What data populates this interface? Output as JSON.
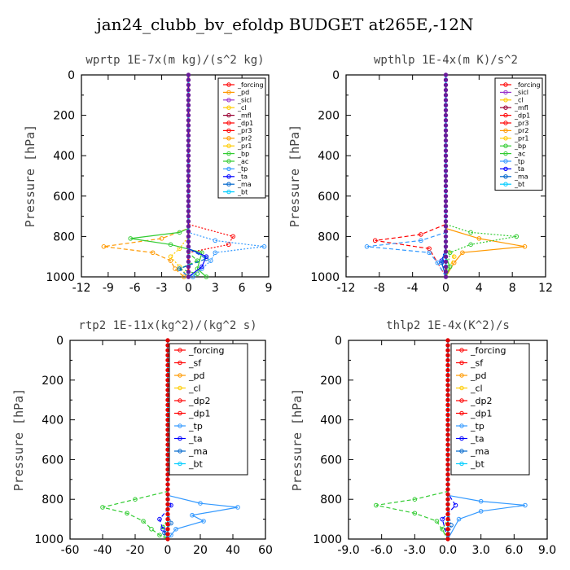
{
  "title": "jan24_clubb_bv_efoldp  BUDGET at265E,-12N",
  "colors": {
    "forcing": "#ff0000",
    "sf": "#ff0000",
    "pd": "#ff9900",
    "sicl": "#9933cc",
    "cl": "#ffcc00",
    "mfl": "#990033",
    "dp1": "#ff0000",
    "pr3": "#ff0000",
    "pr2": "#ff9900",
    "pr1": "#ffcc00",
    "bp": "#33cc33",
    "ac": "#33cc33",
    "tp": "#3399ff",
    "ta": "#0000ff",
    "ma": "#0066cc",
    "bt": "#00ccff"
  },
  "chart_data": [
    {
      "type": "line",
      "title": "wprtp   1E-7x(m kg)/(s^2 kg)",
      "ylabel": "Pressure [hPa]",
      "xlim": [
        -12,
        9
      ],
      "ylim": [
        1000,
        0
      ],
      "xticks": [
        "-12",
        "-9",
        "-6",
        "-3",
        "0",
        "3",
        "6",
        "9"
      ],
      "yticks": [
        "0",
        "200",
        "400",
        "600",
        "800",
        "1000"
      ],
      "legend": [
        "_forcing",
        "_pd",
        "_sicl",
        "_cl",
        "_mfl",
        "_dp1",
        "_pr3",
        "_pr2",
        "_pr1",
        "_bp",
        "_ac",
        "_tp",
        "_ta",
        "_ma",
        "_bt"
      ],
      "series": [
        {
          "name": "_forcing",
          "ckey": "forcing",
          "x": [
            0,
            0
          ],
          "y": [
            0,
            1000
          ]
        },
        {
          "name": "_pd",
          "ckey": "pd",
          "x": [
            0,
            0
          ],
          "y": [
            0,
            1000
          ]
        },
        {
          "name": "_sicl",
          "ckey": "sicl",
          "x": [
            0,
            0
          ],
          "y": [
            0,
            1000
          ]
        },
        {
          "name": "_cl",
          "ckey": "cl",
          "x": [
            0,
            0
          ],
          "y": [
            0,
            1000
          ]
        },
        {
          "name": "_mfl",
          "ckey": "mfl",
          "x": [
            0,
            0
          ],
          "y": [
            0,
            1000
          ]
        },
        {
          "name": "_dp1",
          "ckey": "dp1",
          "x": [
            0,
            0,
            5,
            4.5,
            0,
            0,
            0
          ],
          "y": [
            0,
            740,
            800,
            840,
            880,
            920,
            1000
          ]
        },
        {
          "name": "_pr3",
          "ckey": "pr3",
          "x": [
            0,
            0,
            0,
            0,
            0
          ],
          "y": [
            0,
            740,
            800,
            880,
            1000
          ]
        },
        {
          "name": "_pr2",
          "ckey": "pr2",
          "x": [
            0,
            0,
            -3,
            -9.5,
            -4,
            -2,
            -1.5,
            -0.5
          ],
          "y": [
            0,
            760,
            810,
            850,
            880,
            920,
            960,
            1000
          ]
        },
        {
          "name": "_pr1",
          "ckey": "pr1",
          "x": [
            0,
            0,
            -1,
            -2,
            -1,
            0
          ],
          "y": [
            0,
            800,
            860,
            900,
            950,
            1000
          ]
        },
        {
          "name": "_bp",
          "ckey": "bp",
          "x": [
            0,
            0,
            -1,
            -6.5,
            -2,
            1.5,
            1,
            2
          ],
          "y": [
            0,
            760,
            780,
            810,
            840,
            880,
            960,
            1000
          ]
        },
        {
          "name": "_ac",
          "ckey": "ac",
          "x": [
            0,
            0,
            1,
            -1,
            1,
            0
          ],
          "y": [
            0,
            880,
            920,
            960,
            985,
            1000
          ]
        },
        {
          "name": "_tp",
          "ckey": "tp",
          "x": [
            0,
            0,
            3,
            8.5,
            3,
            2.5,
            1.5,
            0.5
          ],
          "y": [
            0,
            780,
            820,
            850,
            880,
            920,
            960,
            1000
          ]
        },
        {
          "name": "_ta",
          "ckey": "ta",
          "x": [
            0,
            0,
            2,
            1.5,
            0
          ],
          "y": [
            0,
            860,
            900,
            950,
            1000
          ]
        },
        {
          "name": "_ma",
          "ckey": "ma",
          "x": [
            0,
            0,
            2,
            -1,
            0
          ],
          "y": [
            0,
            860,
            910,
            960,
            1000
          ]
        },
        {
          "name": "_bt",
          "ckey": "bt",
          "x": [
            0,
            0
          ],
          "y": [
            0,
            1000
          ]
        }
      ]
    },
    {
      "type": "line",
      "title": "wpthlp   1E-4x(m K)/s^2",
      "ylabel": "Pressure [hPa]",
      "xlim": [
        -12,
        12
      ],
      "ylim": [
        1000,
        0
      ],
      "xticks": [
        "-12",
        "-8",
        "-4",
        "0",
        "4",
        "8",
        "12"
      ],
      "yticks": [
        "0",
        "200",
        "400",
        "600",
        "800",
        "1000"
      ],
      "legend": [
        "_forcing",
        "_sicl",
        "_cl",
        "_mfl",
        "_dp1",
        "_pr3",
        "_pr2",
        "_pr1",
        "_bp",
        "_ac",
        "_tp",
        "_ta",
        "_ma",
        "_bt"
      ],
      "series": [
        {
          "name": "_forcing",
          "ckey": "forcing",
          "x": [
            0,
            0
          ],
          "y": [
            0,
            1000
          ]
        },
        {
          "name": "_sicl",
          "ckey": "sicl",
          "x": [
            0,
            0
          ],
          "y": [
            0,
            1000
          ]
        },
        {
          "name": "_cl",
          "ckey": "cl",
          "x": [
            0,
            0
          ],
          "y": [
            0,
            1000
          ]
        },
        {
          "name": "_mfl",
          "ckey": "mfl",
          "x": [
            0,
            0
          ],
          "y": [
            0,
            1000
          ]
        },
        {
          "name": "_dp1",
          "ckey": "dp1",
          "x": [
            0,
            0,
            -3,
            -8.5,
            -2,
            0
          ],
          "y": [
            0,
            740,
            790,
            820,
            860,
            1000
          ]
        },
        {
          "name": "_pr3",
          "ckey": "pr3",
          "x": [
            0,
            0
          ],
          "y": [
            0,
            1000
          ]
        },
        {
          "name": "_pr2",
          "ckey": "pr2",
          "x": [
            0,
            0,
            4,
            9.5,
            2,
            1,
            0
          ],
          "y": [
            0,
            760,
            810,
            850,
            880,
            930,
            1000
          ]
        },
        {
          "name": "_pr1",
          "ckey": "pr1",
          "x": [
            0,
            0,
            1,
            0
          ],
          "y": [
            0,
            850,
            900,
            1000
          ]
        },
        {
          "name": "_bp",
          "ckey": "bp",
          "x": [
            0,
            0,
            3,
            8.5,
            3,
            0.5,
            0
          ],
          "y": [
            0,
            740,
            780,
            800,
            840,
            880,
            1000
          ]
        },
        {
          "name": "_ac",
          "ckey": "ac",
          "x": [
            0,
            0,
            0.5,
            0
          ],
          "y": [
            0,
            900,
            950,
            1000
          ]
        },
        {
          "name": "_tp",
          "ckey": "tp",
          "x": [
            0,
            0,
            -3,
            -9.5,
            -2,
            -1,
            0
          ],
          "y": [
            0,
            780,
            820,
            850,
            880,
            930,
            1000
          ]
        },
        {
          "name": "_ta",
          "ckey": "ta",
          "x": [
            0,
            0,
            -0.5,
            0
          ],
          "y": [
            0,
            850,
            920,
            1000
          ]
        },
        {
          "name": "_ma",
          "ckey": "ma",
          "x": [
            0,
            0,
            -0.5,
            0
          ],
          "y": [
            0,
            860,
            930,
            1000
          ]
        },
        {
          "name": "_bt",
          "ckey": "bt",
          "x": [
            0,
            0
          ],
          "y": [
            0,
            1000
          ]
        }
      ]
    },
    {
      "type": "line",
      "title": "rtp2   1E-11x(kg^2)/(kg^2 s)",
      "ylabel": "Pressure [hPa]",
      "xlim": [
        -60,
        60
      ],
      "ylim": [
        1000,
        0
      ],
      "xticks": [
        "-60",
        "-40",
        "-20",
        "0",
        "20",
        "40",
        "60"
      ],
      "yticks": [
        "0",
        "200",
        "400",
        "600",
        "800",
        "1000"
      ],
      "legend": [
        "_forcing",
        "_sf",
        "_pd",
        "_cl",
        "_dp2",
        "_dp1",
        "_tp",
        "_ta",
        "_ma",
        "_bt"
      ],
      "series": [
        {
          "name": "_forcing",
          "ckey": "forcing",
          "x": [
            0,
            0
          ],
          "y": [
            0,
            1000
          ]
        },
        {
          "name": "_sf",
          "ckey": "sf",
          "x": [
            0,
            0
          ],
          "y": [
            0,
            1000
          ]
        },
        {
          "name": "_pd",
          "ckey": "pd",
          "x": [
            0,
            0
          ],
          "y": [
            0,
            1000
          ]
        },
        {
          "name": "_cl",
          "ckey": "cl",
          "x": [
            0,
            0
          ],
          "y": [
            0,
            1000
          ]
        },
        {
          "name": "_dp2",
          "ckey": "bp",
          "x": [
            0,
            0,
            -20,
            -40,
            -25,
            -15,
            -10,
            -5,
            0
          ],
          "y": [
            0,
            760,
            800,
            840,
            870,
            910,
            950,
            980,
            1000
          ]
        },
        {
          "name": "_dp1",
          "ckey": "bp",
          "x": [
            0,
            0,
            -3,
            -1,
            0
          ],
          "y": [
            0,
            900,
            940,
            980,
            1000
          ]
        },
        {
          "name": "_tp",
          "ckey": "tp",
          "x": [
            0,
            0,
            20,
            43,
            15,
            22,
            5,
            2,
            0
          ],
          "y": [
            0,
            780,
            820,
            840,
            880,
            910,
            950,
            980,
            1000
          ]
        },
        {
          "name": "_ta",
          "ckey": "ta",
          "x": [
            0,
            0,
            2,
            -5,
            -3,
            0
          ],
          "y": [
            0,
            780,
            830,
            900,
            950,
            1000
          ]
        },
        {
          "name": "_ma",
          "ckey": "ma",
          "x": [
            0,
            0,
            2,
            -2,
            0
          ],
          "y": [
            0,
            860,
            920,
            970,
            1000
          ]
        },
        {
          "name": "_bt",
          "ckey": "bt",
          "x": [
            0,
            0
          ],
          "y": [
            0,
            1000
          ]
        }
      ]
    },
    {
      "type": "line",
      "title": "thlp2   1E-4x(K^2)/s",
      "ylabel": "Pressure [hPa]",
      "xlim": [
        -9,
        9
      ],
      "ylim": [
        1000,
        0
      ],
      "xticks": [
        "-9.0",
        "-6.0",
        "-3.0",
        "0.0",
        "3.0",
        "6.0",
        "9.0"
      ],
      "yticks": [
        "0",
        "200",
        "400",
        "600",
        "800",
        "1000"
      ],
      "legend": [
        "_forcing",
        "_sf",
        "_pd",
        "_cl",
        "_dp2",
        "_dp1",
        "_tp",
        "_ta",
        "_ma",
        "_bt"
      ],
      "series": [
        {
          "name": "_forcing",
          "ckey": "forcing",
          "x": [
            0,
            0
          ],
          "y": [
            0,
            1000
          ]
        },
        {
          "name": "_sf",
          "ckey": "sf",
          "x": [
            0,
            0
          ],
          "y": [
            0,
            1000
          ]
        },
        {
          "name": "_pd",
          "ckey": "pd",
          "x": [
            0,
            0
          ],
          "y": [
            0,
            1000
          ]
        },
        {
          "name": "_cl",
          "ckey": "cl",
          "x": [
            0,
            0
          ],
          "y": [
            0,
            1000
          ]
        },
        {
          "name": "_dp2",
          "ckey": "bp",
          "x": [
            0,
            0,
            -3,
            -6.5,
            -3,
            -1,
            0
          ],
          "y": [
            0,
            760,
            800,
            830,
            870,
            910,
            1000
          ]
        },
        {
          "name": "_dp1",
          "ckey": "bp",
          "x": [
            0,
            0,
            -0.5,
            0
          ],
          "y": [
            0,
            900,
            950,
            1000
          ]
        },
        {
          "name": "_tp",
          "ckey": "tp",
          "x": [
            0,
            0,
            3,
            7,
            3,
            1,
            0
          ],
          "y": [
            0,
            780,
            810,
            830,
            860,
            900,
            1000
          ]
        },
        {
          "name": "_ta",
          "ckey": "ta",
          "x": [
            0,
            0,
            0.7,
            -0.5,
            0
          ],
          "y": [
            0,
            770,
            830,
            900,
            1000
          ]
        },
        {
          "name": "_ma",
          "ckey": "ma",
          "x": [
            0,
            0,
            0.3,
            0
          ],
          "y": [
            0,
            860,
            930,
            1000
          ]
        },
        {
          "name": "_bt",
          "ckey": "bt",
          "x": [
            0,
            0
          ],
          "y": [
            0,
            1000
          ]
        }
      ]
    }
  ]
}
